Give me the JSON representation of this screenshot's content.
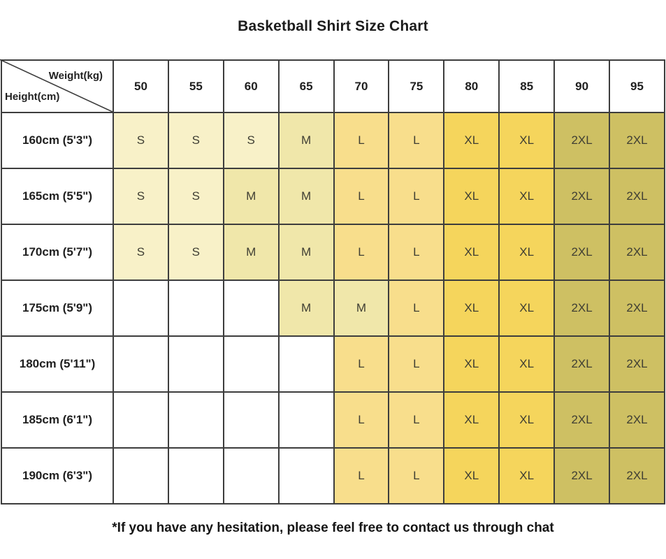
{
  "page": {
    "title": "Basketball Shirt Size Chart",
    "footer_note": "*If you have any hesitation, please feel free to contact us through chat"
  },
  "table": {
    "corner": {
      "top_label": "Weight(kg)",
      "bottom_label": "Height(cm)"
    },
    "weight_headers": [
      "50",
      "55",
      "60",
      "65",
      "70",
      "75",
      "80",
      "85",
      "90",
      "95"
    ],
    "rows": [
      {
        "height": "160cm (5'3\")",
        "sizes": [
          "S",
          "S",
          "S",
          "M",
          "L",
          "L",
          "XL",
          "XL",
          "2XL",
          "2XL"
        ]
      },
      {
        "height": "165cm (5'5\")",
        "sizes": [
          "S",
          "S",
          "M",
          "M",
          "L",
          "L",
          "XL",
          "XL",
          "2XL",
          "2XL"
        ]
      },
      {
        "height": "170cm (5'7\")",
        "sizes": [
          "S",
          "S",
          "M",
          "M",
          "L",
          "L",
          "XL",
          "XL",
          "2XL",
          "2XL"
        ]
      },
      {
        "height": "175cm (5'9\")",
        "sizes": [
          "",
          "",
          "",
          "M",
          "M",
          "L",
          "XL",
          "XL",
          "2XL",
          "2XL"
        ]
      },
      {
        "height": "180cm (5'11\")",
        "sizes": [
          "",
          "",
          "",
          "",
          "L",
          "L",
          "XL",
          "XL",
          "2XL",
          "2XL"
        ]
      },
      {
        "height": "185cm (6'1\")",
        "sizes": [
          "",
          "",
          "",
          "",
          "L",
          "L",
          "XL",
          "XL",
          "2XL",
          "2XL"
        ]
      },
      {
        "height": "190cm (6'3\")",
        "sizes": [
          "",
          "",
          "",
          "",
          "L",
          "L",
          "XL",
          "XL",
          "2XL",
          "2XL"
        ]
      }
    ],
    "size_colors": {
      "S": "#F8F1C8",
      "M": "#F0E7AA",
      "L": "#F8DE8C",
      "XL": "#F5D55C",
      "2XL": "#CEC063",
      "empty": "#FFFFFF"
    }
  },
  "chart_data": {
    "type": "table",
    "title": "Basketball Shirt Size Chart",
    "x_header": "Weight(kg)",
    "y_header": "Height(cm)",
    "columns": [
      "50",
      "55",
      "60",
      "65",
      "70",
      "75",
      "80",
      "85",
      "90",
      "95"
    ],
    "row_labels": [
      "160cm (5'3\")",
      "165cm (5'5\")",
      "170cm (5'7\")",
      "175cm (5'9\")",
      "180cm (5'11\")",
      "185cm (6'1\")",
      "190cm (6'3\")"
    ],
    "cells": [
      [
        "S",
        "S",
        "S",
        "M",
        "L",
        "L",
        "XL",
        "XL",
        "2XL",
        "2XL"
      ],
      [
        "S",
        "S",
        "M",
        "M",
        "L",
        "L",
        "XL",
        "XL",
        "2XL",
        "2XL"
      ],
      [
        "S",
        "S",
        "M",
        "M",
        "L",
        "L",
        "XL",
        "XL",
        "2XL",
        "2XL"
      ],
      [
        "",
        "",
        "",
        "M",
        "M",
        "L",
        "XL",
        "XL",
        "2XL",
        "2XL"
      ],
      [
        "",
        "",
        "",
        "",
        "L",
        "L",
        "XL",
        "XL",
        "2XL",
        "2XL"
      ],
      [
        "",
        "",
        "",
        "",
        "L",
        "L",
        "XL",
        "XL",
        "2XL",
        "2XL"
      ],
      [
        "",
        "",
        "",
        "",
        "L",
        "L",
        "XL",
        "XL",
        "2XL",
        "2XL"
      ]
    ],
    "footnote": "*If you have any hesitation, please feel free to contact us through chat"
  }
}
